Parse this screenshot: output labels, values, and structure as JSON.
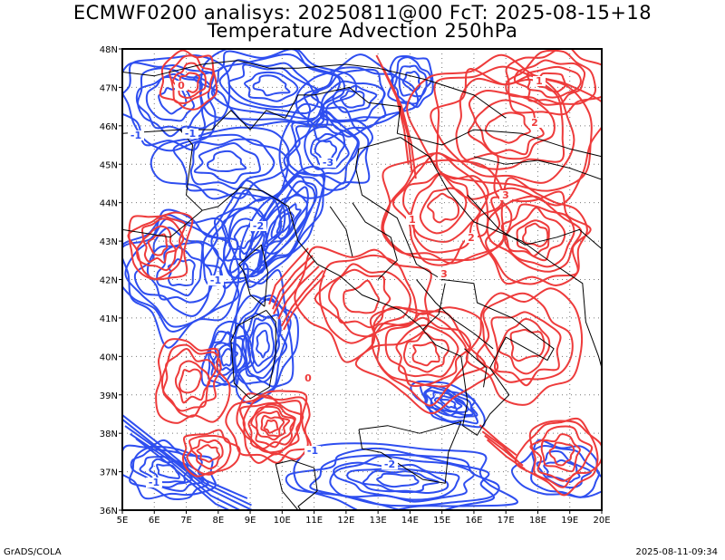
{
  "title_line1": "ECMWF0200 analisys: 20250811@00 FcT: 2025-08-15+18",
  "title_line2": "Temperature Advection 250hPa",
  "footer_left": "GrADS/COLA",
  "footer_right": "2025-08-11-09:34",
  "map": {
    "lon_range": [
      5,
      20
    ],
    "lat_range": [
      36,
      48
    ],
    "lon_ticks": [
      "5E",
      "6E",
      "7E",
      "8E",
      "9E",
      "10E",
      "11E",
      "12E",
      "13E",
      "14E",
      "15E",
      "16E",
      "17E",
      "18E",
      "19E",
      "20E"
    ],
    "lat_ticks": [
      "36N",
      "37N",
      "38N",
      "39N",
      "40N",
      "41N",
      "42N",
      "43N",
      "44N",
      "45N",
      "46N",
      "47N",
      "48N"
    ],
    "grid": "dotted",
    "positive_color": "#ee3b3b",
    "negative_color": "#2e4ef0",
    "boundary_color": "#000000",
    "contour_labels_positive": [
      "0",
      "1",
      "2",
      "3",
      "2",
      "3",
      "1",
      "0"
    ],
    "contour_labels_negative": [
      "-1",
      "-1",
      "-2",
      "-3",
      "-1",
      "-1",
      "-2",
      "-1"
    ]
  }
}
